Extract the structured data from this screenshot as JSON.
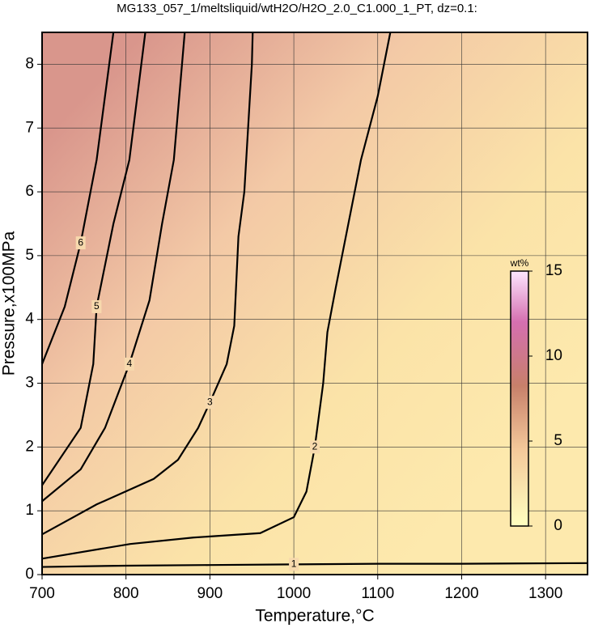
{
  "chart_data": {
    "type": "contour",
    "title": "MG133_057_1/meltsliquid/wtH2O/H2O_2.0_C1.000_1_PT, dz=0.1:",
    "xlabel": "Temperature,°C",
    "ylabel": "Pressure,x100MPa",
    "xlim": [
      700,
      1350
    ],
    "ylim": [
      0,
      8.5
    ],
    "xticks": [
      700,
      800,
      900,
      1000,
      1100,
      1200,
      1300
    ],
    "yticks": [
      0,
      1,
      2,
      3,
      4,
      5,
      6,
      7,
      8
    ],
    "grid": true,
    "contours": [
      {
        "level": 1,
        "x": [
          700,
          800,
          900,
          1000,
          1100,
          1200,
          1350
        ],
        "y": [
          0.12,
          0.14,
          0.15,
          0.16,
          0.17,
          0.17,
          0.18
        ]
      },
      {
        "level": 2,
        "x": [
          1115,
          1100,
          1080,
          1065,
          1050,
          1040,
          1035,
          1025,
          1015,
          1000,
          960,
          880,
          805,
          700
        ],
        "y": [
          8.5,
          7.5,
          6.5,
          5.5,
          4.5,
          3.8,
          3.0,
          2.0,
          1.3,
          0.9,
          0.65,
          0.58,
          0.48,
          0.25
        ]
      },
      {
        "level": 3,
        "x": [
          951,
          950,
          941,
          934,
          929,
          920,
          900,
          886,
          862,
          833,
          765,
          700
        ],
        "y": [
          8.5,
          8.0,
          6.0,
          5.3,
          3.9,
          3.3,
          2.7,
          2.3,
          1.8,
          1.5,
          1.1,
          0.63
        ]
      },
      {
        "level": 4,
        "x": [
          870,
          857,
          843,
          828,
          804,
          775,
          746,
          700
        ],
        "y": [
          8.5,
          6.5,
          5.5,
          4.3,
          3.3,
          2.3,
          1.65,
          1.15
        ]
      },
      {
        "level": 5,
        "x": [
          823,
          804,
          785,
          765,
          761,
          746,
          700
        ],
        "y": [
          8.5,
          6.5,
          5.5,
          4.2,
          3.3,
          2.3,
          1.4
        ]
      },
      {
        "level": 6,
        "x": [
          785,
          765,
          746,
          727,
          700
        ],
        "y": [
          8.5,
          6.5,
          5.2,
          4.2,
          3.3
        ]
      }
    ],
    "colorbar": {
      "label": "wt%",
      "lim": [
        0,
        15
      ],
      "ticks": [
        0,
        5,
        10,
        15
      ]
    }
  }
}
